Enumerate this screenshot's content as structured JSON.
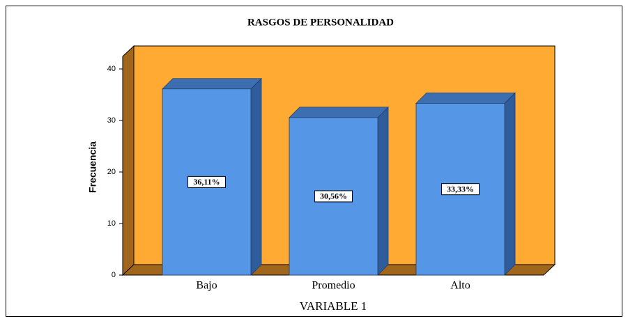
{
  "chart_data": {
    "type": "bar3d",
    "title": "RASGOS DE PERSONALIDAD",
    "x_label": "VARIABLE 1",
    "y_label": "Frecuencia",
    "categories": [
      "Bajo",
      "Promedio",
      "Alto"
    ],
    "values": [
      36.11,
      30.56,
      33.33
    ],
    "value_labels": [
      "36,11%",
      "30,56%",
      "33,33%"
    ],
    "color": "#5596e6",
    "wall_color": "#ffaa33",
    "floor_color": "#a0661c",
    "ylim": [
      0,
      40
    ],
    "yticks": [
      0,
      10,
      20,
      30,
      40
    ],
    "grid": false
  }
}
